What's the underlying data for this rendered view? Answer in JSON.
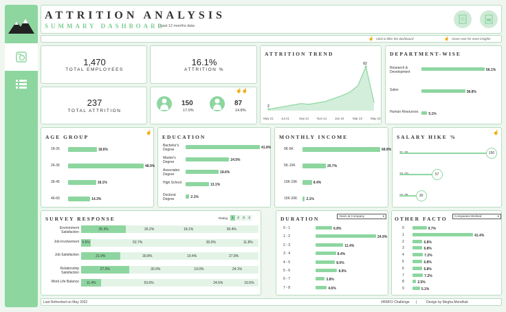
{
  "header": {
    "title": "ATTRITION ANALYSIS",
    "subtitle": "SUMMARY DASHBOARD",
    "period": "Last 12 months data",
    "hint_filter": "Click to filter the dashboard",
    "hint_hover": "Hover over for more insights"
  },
  "kpi": {
    "total_employees": "1,470",
    "total_employees_label": "TOTAL EMPLOYEES",
    "attrition_pct": "16.1%",
    "attrition_pct_label": "ATTRITION %",
    "total_attrition": "237",
    "total_attrition_label": "TOTAL ATTRITION",
    "male_count": "150",
    "male_pct": "17.0%",
    "female_count": "87",
    "female_pct": "14.8%"
  },
  "trend": {
    "title": "ATTRITION TREND",
    "x_labels": [
      "May 21",
      "Jul 21",
      "Sep 21",
      "Nov 21",
      "Jan 22",
      "Mar 22",
      "May 22"
    ],
    "start_label": "2",
    "peak_label": "62",
    "values": [
      2,
      4,
      6,
      8,
      10,
      9,
      11,
      13,
      17,
      21,
      26,
      35,
      62,
      12
    ]
  },
  "department": {
    "title": "DEPARTMENT-WISE",
    "items": [
      {
        "label": "Research & Development",
        "value": "56.1%",
        "v": 56.1
      },
      {
        "label": "Sales",
        "value": "38.8%",
        "v": 38.8
      },
      {
        "label": "Human Resources",
        "value": "5.1%",
        "v": 5.1
      }
    ]
  },
  "age": {
    "title": "AGE GROUP",
    "items": [
      {
        "label": "18-25",
        "value": "18.6%",
        "v": 18.6
      },
      {
        "label": "26-35",
        "value": "48.9%",
        "v": 48.9
      },
      {
        "label": "36-45",
        "value": "18.1%",
        "v": 18.1
      },
      {
        "label": "46-60",
        "value": "14.3%",
        "v": 14.3
      }
    ]
  },
  "education": {
    "title": "EDUCATION",
    "items": [
      {
        "label": "Bachelor's Degree",
        "value": "41.8%",
        "v": 41.8
      },
      {
        "label": "Master's Degree",
        "value": "24.5%",
        "v": 24.5
      },
      {
        "label": "Associates Degree",
        "value": "18.6%",
        "v": 18.6
      },
      {
        "label": "High School",
        "value": "13.1%",
        "v": 13.1
      },
      {
        "label": "Doctoral Degree",
        "value": "2.1%",
        "v": 2.1
      }
    ]
  },
  "income": {
    "title": "MONTHLY INCOME",
    "items": [
      {
        "label": "0K-5K",
        "value": "68.8%",
        "v": 68.8
      },
      {
        "label": "5K-10K",
        "value": "20.7%",
        "v": 20.7
      },
      {
        "label": "10K-15K",
        "value": "8.4%",
        "v": 8.4
      },
      {
        "label": "15K-20K",
        "value": "2.1%",
        "v": 2.1
      }
    ]
  },
  "salary": {
    "title": "SALARY HIKE %",
    "items": [
      {
        "label": "11-15",
        "value": "150",
        "v": 150
      },
      {
        "label": "16-20",
        "value": "57",
        "v": 57
      },
      {
        "label": "21-25",
        "value": "30",
        "v": 30
      }
    ]
  },
  "survey": {
    "title": "SURVEY RESPONSE",
    "rating_label": "Rating",
    "ratings": [
      "1",
      "2",
      "3",
      "4"
    ],
    "rows": [
      {
        "label": "Environment Satisfaction",
        "cells": [
          "25.3%",
          "26.2%",
          "18.1%",
          "30.4%"
        ],
        "w": [
          25.3,
          26.2,
          18.1,
          30.4
        ]
      },
      {
        "label": "Job Involvement",
        "cells": [
          "5.5%",
          "52.7%",
          "30.0%",
          "11.8%"
        ],
        "w": [
          5.5,
          52.7,
          30.0,
          11.8
        ]
      },
      {
        "label": "Job Satisfaction",
        "cells": [
          "21.9%",
          "30.8%",
          "19.4%",
          "27.8%"
        ],
        "w": [
          21.9,
          30.8,
          19.4,
          27.8
        ]
      },
      {
        "label": "Relationship Satisfaction",
        "cells": [
          "27.0%",
          "30.0%",
          "19.0%",
          "24.1%"
        ],
        "w": [
          27.0,
          30.0,
          19.0,
          24.1
        ]
      },
      {
        "label": "Work Life Balance",
        "cells": [
          "11.4%",
          "53.6%",
          "24.5%",
          "10.5%"
        ],
        "w": [
          11.4,
          53.6,
          24.5,
          10.5
        ]
      }
    ]
  },
  "duration": {
    "title": "DURATION",
    "select": "Years at Company",
    "items": [
      {
        "label": "0 - 1",
        "value": "6.8%",
        "v": 6.8
      },
      {
        "label": "1 - 2",
        "value": "24.9%",
        "v": 24.9
      },
      {
        "label": "2 - 3",
        "value": "11.4%",
        "v": 11.4
      },
      {
        "label": "3 - 4",
        "value": "8.4%",
        "v": 8.4
      },
      {
        "label": "4 - 5",
        "value": "8.0%",
        "v": 8.0
      },
      {
        "label": "5 - 6",
        "value": "8.9%",
        "v": 8.9
      },
      {
        "label": "6 - 7",
        "value": "3.8%",
        "v": 3.8
      },
      {
        "label": "7 - 8",
        "value": "4.6%",
        "v": 4.6
      }
    ]
  },
  "other": {
    "title": "OTHER FACTO",
    "select": "Companies Worked",
    "items": [
      {
        "label": "0",
        "value": "9.7%",
        "v": 9.7
      },
      {
        "label": "1",
        "value": "41.4%",
        "v": 41.4
      },
      {
        "label": "2",
        "value": "6.8%",
        "v": 6.8
      },
      {
        "label": "3",
        "value": "6.8%",
        "v": 6.8
      },
      {
        "label": "4",
        "value": "7.2%",
        "v": 7.2
      },
      {
        "label": "5",
        "value": "6.8%",
        "v": 6.8
      },
      {
        "label": "6",
        "value": "6.8%",
        "v": 6.8
      },
      {
        "label": "7",
        "value": "7.2%",
        "v": 7.2
      },
      {
        "label": "8",
        "value": "2.5%",
        "v": 2.5
      },
      {
        "label": "9",
        "value": "5.1%",
        "v": 5.1
      }
    ]
  },
  "footer": {
    "refreshed": "Last Refreshed on May 2022",
    "challenge": "#RWFD Challenge",
    "sep": "|",
    "credit": "Design by Megha Mendhali"
  },
  "colors": {
    "accent": "#8dd6a0",
    "light": "#e3f4e7"
  }
}
